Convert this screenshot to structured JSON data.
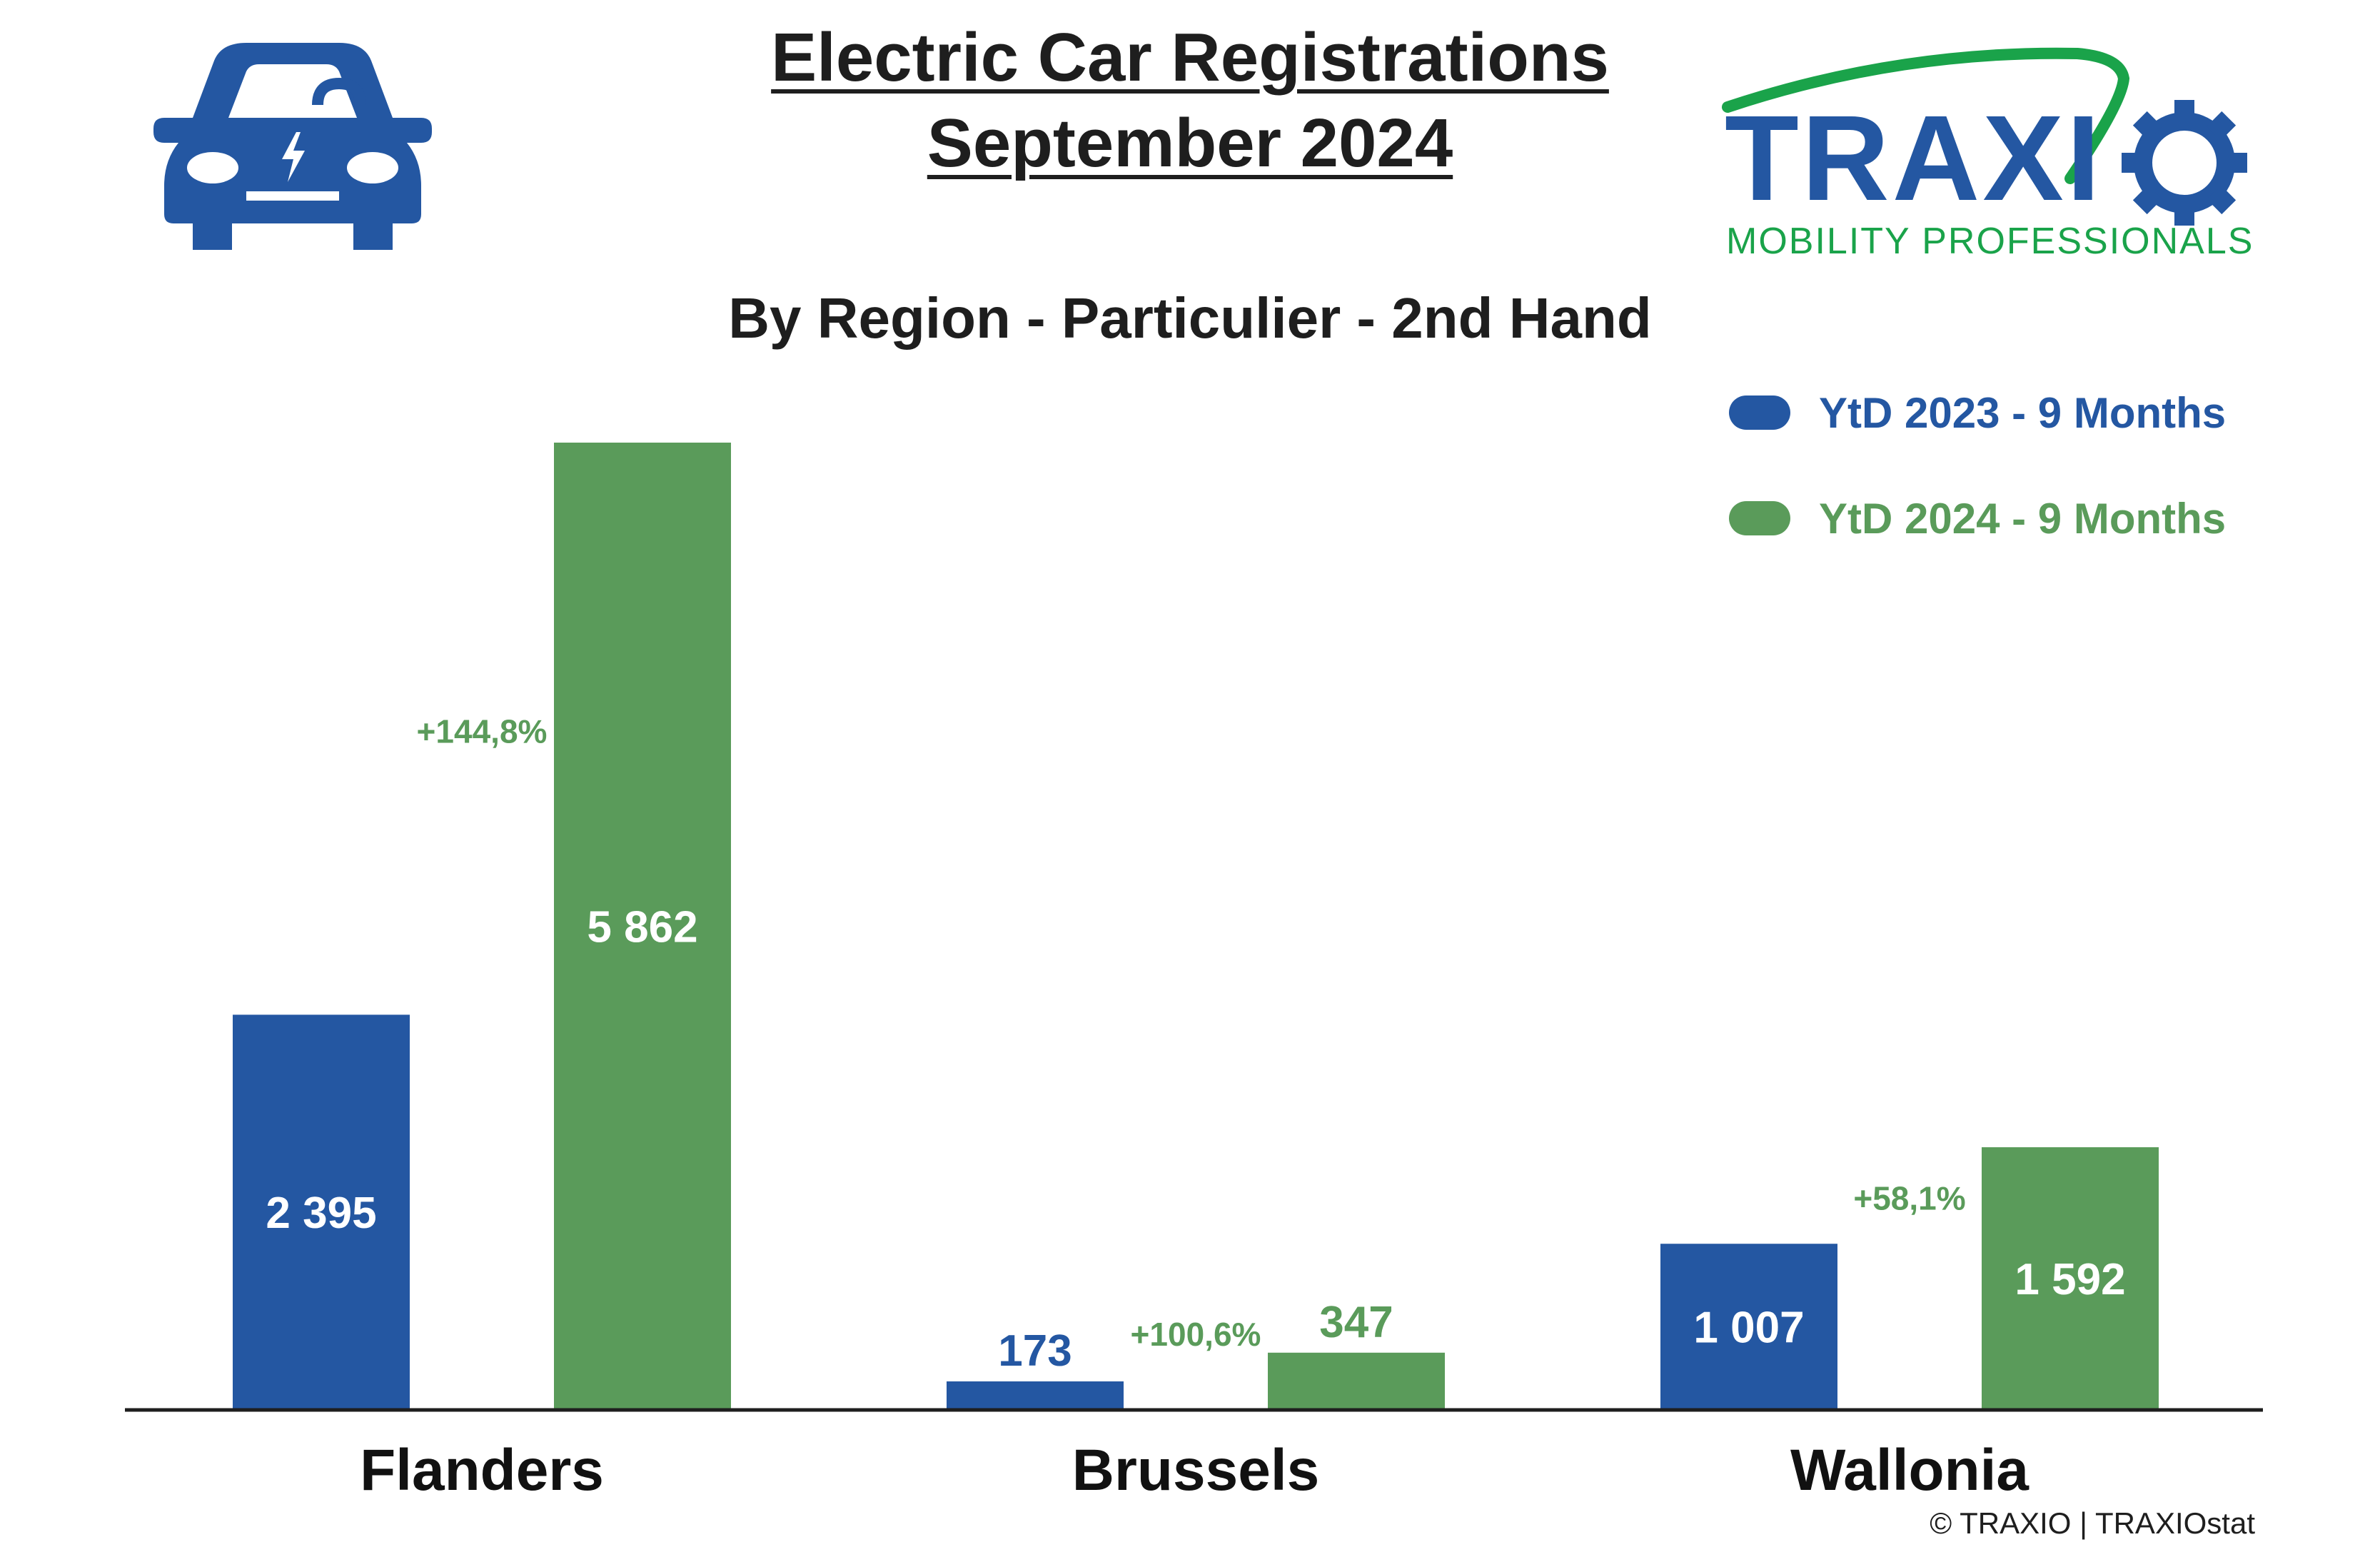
{
  "header": {
    "title_line1": "Electric Car Registrations",
    "title_line2": "September 2024",
    "subtitle": "By Region - Particulier - 2nd Hand"
  },
  "logo": {
    "name": "TRAXIO",
    "tagline": "MOBILITY PROFESSIONALS",
    "blue": "#2457a2",
    "green": "#1aa34a"
  },
  "icons": {
    "car": "electric-car-icon"
  },
  "colors": {
    "ytd2023": "#2457a2",
    "ytd2024": "#5a9b5a",
    "axis": "#1e1e1e"
  },
  "footer": {
    "copyright": "© TRAXIO | TRAXIOstat"
  },
  "chart_data": {
    "type": "bar",
    "title": "By Region - Particulier - 2nd Hand",
    "categories": [
      "Flanders",
      "Brussels",
      "Wallonia"
    ],
    "series": [
      {
        "name": "YtD 2023 - 9 Months",
        "values": [
          2395,
          173,
          1007
        ],
        "labels": [
          "2 395",
          "173",
          "1 007"
        ]
      },
      {
        "name": "YtD 2024 - 9 Months",
        "values": [
          5862,
          347,
          1592
        ],
        "labels": [
          "5 862",
          "347",
          "1 592"
        ]
      }
    ],
    "annotations": [
      "+144,8%",
      "+100,6%",
      "+58,1%"
    ],
    "legend": "top-right",
    "grid": false,
    "ylim": [
      0,
      5862
    ]
  }
}
